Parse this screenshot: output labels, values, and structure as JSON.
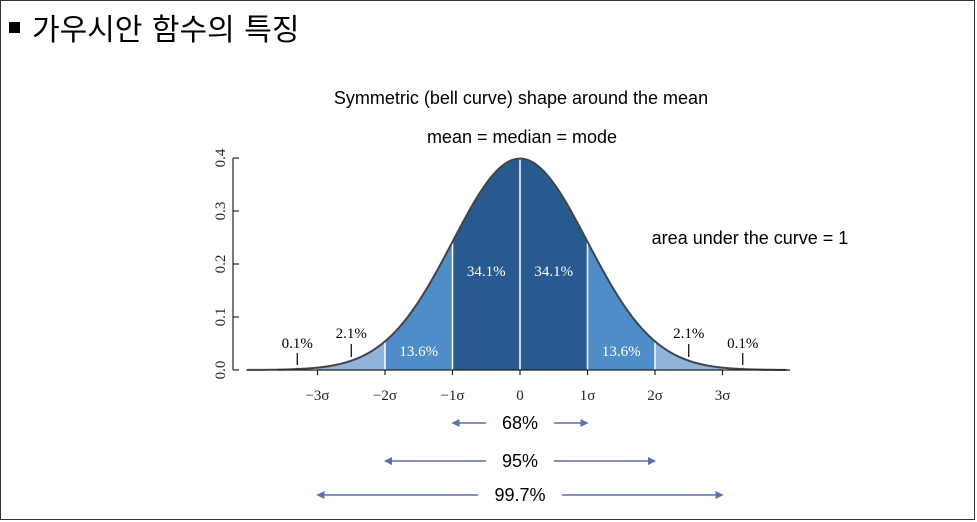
{
  "slide": {
    "title": "가우시안 함수의 특징"
  },
  "annotations": {
    "symmetric": "Symmetric (bell curve) shape around the mean",
    "mean_median_mode": "mean = median = mode",
    "area": "area under the curve = 1"
  },
  "chart_data": {
    "type": "area",
    "title": "",
    "xlabel": "",
    "ylabel": "",
    "xlim": [
      -4,
      4
    ],
    "ylim": [
      0,
      0.4
    ],
    "y_ticks": [
      {
        "value": 0.0,
        "label": "0.0"
      },
      {
        "value": 0.1,
        "label": "0.1"
      },
      {
        "value": 0.2,
        "label": "0.2"
      },
      {
        "value": 0.3,
        "label": "0.3"
      },
      {
        "value": 0.4,
        "label": "0.4"
      }
    ],
    "x_ticks": [
      {
        "value": -3,
        "label": "−3σ"
      },
      {
        "value": -2,
        "label": "−2σ"
      },
      {
        "value": -1,
        "label": "−1σ"
      },
      {
        "value": 0,
        "label": "0"
      },
      {
        "value": 1,
        "label": "1σ"
      },
      {
        "value": 2,
        "label": "2σ"
      },
      {
        "value": 3,
        "label": "3σ"
      }
    ],
    "curve": "standard normal density",
    "regions": [
      {
        "from": -3,
        "to": -2,
        "percent": "2.1%",
        "color": "#8fb3d9"
      },
      {
        "from": -2,
        "to": -1,
        "percent": "13.6%",
        "color": "#4f8dc8"
      },
      {
        "from": -1,
        "to": 0,
        "percent": "34.1%",
        "color": "#275a8f"
      },
      {
        "from": 0,
        "to": 1,
        "percent": "34.1%",
        "color": "#275a8f"
      },
      {
        "from": 1,
        "to": 2,
        "percent": "13.6%",
        "color": "#4f8dc8"
      },
      {
        "from": 2,
        "to": 3,
        "percent": "2.1%",
        "color": "#8fb3d9"
      }
    ],
    "tail_labels": [
      {
        "x": -3.3,
        "percent": "0.1%"
      },
      {
        "x": 3.3,
        "percent": "0.1%"
      }
    ],
    "ranges": [
      {
        "from": -1,
        "to": 1,
        "percent": "68%"
      },
      {
        "from": -2,
        "to": 2,
        "percent": "95%"
      },
      {
        "from": -3,
        "to": 3,
        "percent": "99.7%"
      }
    ],
    "colors": {
      "curve": "#444444",
      "arrow": "#5b6fb5",
      "axis": "#222222"
    },
    "grid": false,
    "legend": "none"
  }
}
